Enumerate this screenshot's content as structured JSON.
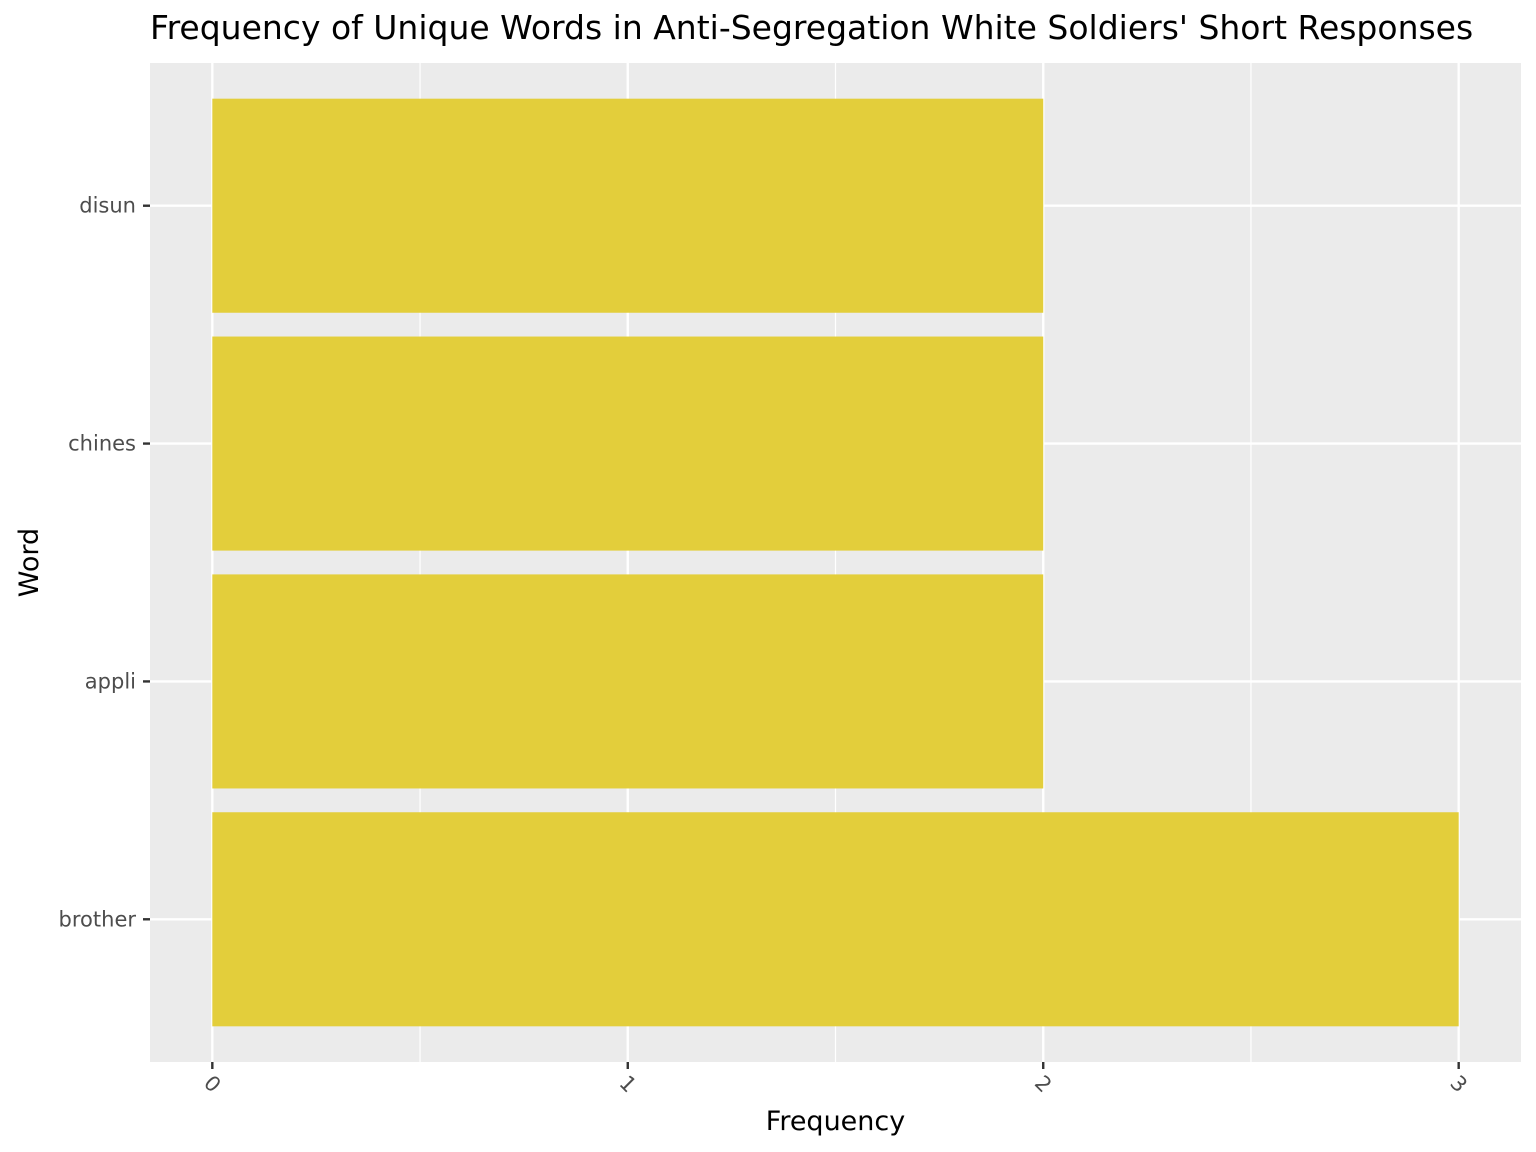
{
  "chart_data": {
    "type": "bar",
    "orientation": "horizontal",
    "title": "Frequency of Unique Words in Anti-Segregation White Soldiers' Short Responses",
    "xlabel": "Frequency",
    "ylabel": "Word",
    "categories": [
      "brother",
      "appli",
      "chines",
      "disun"
    ],
    "values": [
      3,
      2,
      2,
      2
    ],
    "xlim": [
      -0.15,
      3.15
    ],
    "xticks": [
      "0",
      "1",
      "2",
      "3"
    ],
    "grid": true,
    "legend": "none",
    "colors": {
      "bar": "#e3ce3b",
      "panel": "#ebebeb",
      "grid": "#ffffff",
      "tick_text": "#4d4d4d",
      "axis_title": "#000000"
    }
  }
}
